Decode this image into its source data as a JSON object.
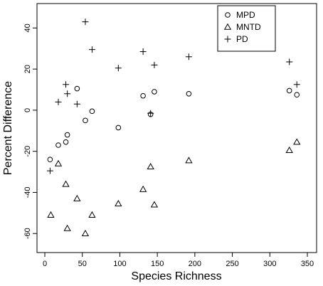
{
  "chart_data": {
    "type": "scatter",
    "title": "",
    "xlabel": "Species Richness",
    "ylabel": "Percent Difference",
    "xlim": [
      0,
      350
    ],
    "ylim": [
      -62,
      46
    ],
    "x_ticks": [
      0,
      50,
      100,
      150,
      200,
      250,
      300,
      350
    ],
    "y_ticks": [
      -60,
      -40,
      -20,
      0,
      20,
      40
    ],
    "x_tick_labels": [
      "0",
      "50",
      "100",
      "150",
      "200",
      "250",
      "300",
      "350"
    ],
    "y_tick_labels": [
      "-60",
      "-40",
      "-20",
      "0",
      "20",
      "40"
    ],
    "grid": false,
    "legend_position": "top-right",
    "series": [
      {
        "name": "MPD",
        "marker": "circle",
        "points": [
          {
            "x": 7,
            "y": -24
          },
          {
            "x": 18,
            "y": -17
          },
          {
            "x": 28,
            "y": -15.5
          },
          {
            "x": 30,
            "y": -12
          },
          {
            "x": 43,
            "y": 10.5
          },
          {
            "x": 54,
            "y": -5
          },
          {
            "x": 63,
            "y": -0.5
          },
          {
            "x": 98,
            "y": -8.5
          },
          {
            "x": 131,
            "y": 7
          },
          {
            "x": 141,
            "y": -2
          },
          {
            "x": 146,
            "y": 9
          },
          {
            "x": 192,
            "y": 8
          },
          {
            "x": 326,
            "y": 9.5
          },
          {
            "x": 336,
            "y": 7.5
          }
        ]
      },
      {
        "name": "MNTD",
        "marker": "triangle",
        "points": [
          {
            "x": 8,
            "y": -51
          },
          {
            "x": 18,
            "y": -26
          },
          {
            "x": 28,
            "y": -36
          },
          {
            "x": 30,
            "y": -57.5
          },
          {
            "x": 43,
            "y": -43
          },
          {
            "x": 54,
            "y": -60
          },
          {
            "x": 63,
            "y": -51
          },
          {
            "x": 98,
            "y": -45.5
          },
          {
            "x": 131,
            "y": -38.5
          },
          {
            "x": 141,
            "y": -27.5
          },
          {
            "x": 146,
            "y": -46
          },
          {
            "x": 192,
            "y": -24.5
          },
          {
            "x": 326,
            "y": -19.5
          },
          {
            "x": 336,
            "y": -15.5
          }
        ]
      },
      {
        "name": "PD",
        "marker": "plus",
        "points": [
          {
            "x": 7,
            "y": -29.5
          },
          {
            "x": 18,
            "y": 4
          },
          {
            "x": 28,
            "y": 12.5
          },
          {
            "x": 30,
            "y": 8
          },
          {
            "x": 43,
            "y": 3
          },
          {
            "x": 54,
            "y": 43
          },
          {
            "x": 63,
            "y": 29.5
          },
          {
            "x": 98,
            "y": 20.5
          },
          {
            "x": 131,
            "y": 28.5
          },
          {
            "x": 141,
            "y": -1.5
          },
          {
            "x": 146,
            "y": 22
          },
          {
            "x": 192,
            "y": 26
          },
          {
            "x": 326,
            "y": 23.5
          },
          {
            "x": 336,
            "y": 12.5
          }
        ]
      }
    ]
  }
}
